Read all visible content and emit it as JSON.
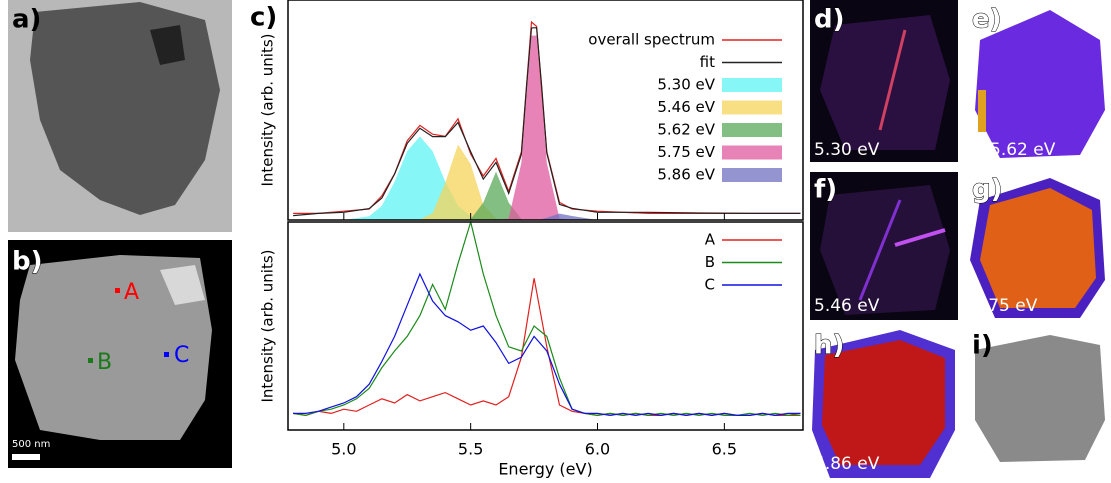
{
  "panels": {
    "a": "a)",
    "b": "b)",
    "c": "c)",
    "d": "d)",
    "e": "e)",
    "f": "f)",
    "g": "g)",
    "h": "h)",
    "i": "i)",
    "points": [
      "A",
      "B",
      "C"
    ],
    "scale": "500 nm",
    "energies": [
      "5.30 eV",
      "5.46 eV",
      "5.62 eV",
      "5.75 eV",
      "5.86 eV"
    ]
  },
  "chart_data": [
    {
      "type": "line",
      "ylabel": "Intensity (arb. units)",
      "x": [
        4.8,
        4.9,
        5.0,
        5.1,
        5.15,
        5.2,
        5.25,
        5.3,
        5.35,
        5.4,
        5.45,
        5.5,
        5.55,
        5.6,
        5.65,
        5.7,
        5.72,
        5.74,
        5.76,
        5.78,
        5.8,
        5.85,
        5.9,
        6.0,
        6.2,
        6.4,
        6.6,
        6.8
      ],
      "xlim": [
        4.78,
        6.81
      ],
      "ylim": [
        0,
        100
      ],
      "series": [
        {
          "name": "5.30 eV",
          "color": "#5ff3f3",
          "fill": true,
          "values": [
            0,
            0,
            0,
            1.7,
            6.5,
            17.4,
            31.3,
            38,
            31.3,
            17.4,
            6.5,
            1.7,
            0.3,
            0,
            0,
            0,
            0,
            0,
            0,
            0,
            0,
            0,
            0,
            0,
            0,
            0,
            0,
            0
          ]
        },
        {
          "name": "5.46 eV",
          "color": "#f5d45a",
          "fill": true,
          "values": [
            0,
            0,
            0,
            0,
            0,
            0,
            0,
            0.2,
            3.1,
            17,
            34.3,
            25.4,
            6.9,
            0.7,
            0,
            0,
            0,
            0,
            0,
            0,
            0,
            0,
            0,
            0,
            0,
            0,
            0,
            0
          ]
        },
        {
          "name": "5.62 eV",
          "color": "#5aa85a",
          "fill": true,
          "values": [
            0,
            0,
            0,
            0,
            0,
            0,
            0,
            0,
            0,
            0,
            0,
            0.4,
            7.9,
            22,
            7.9,
            0.4,
            0,
            0,
            0,
            0,
            0,
            0,
            0,
            0,
            0,
            0,
            0,
            0
          ]
        },
        {
          "name": "5.75 eV",
          "color": "#df5a9e",
          "fill": true,
          "values": [
            0,
            0,
            0,
            0,
            0,
            0,
            0,
            0,
            0,
            0,
            0,
            0,
            0,
            0,
            0.7,
            26,
            56.7,
            83.8,
            83.8,
            56.7,
            26,
            0.7,
            0,
            0,
            0,
            0,
            0,
            0
          ]
        },
        {
          "name": "5.86 eV",
          "color": "#7070c0",
          "fill": true,
          "values": [
            0,
            0,
            0,
            0,
            0,
            0,
            0,
            0,
            0,
            0,
            0,
            0,
            0,
            0,
            0,
            0,
            0,
            0,
            0.1,
            0.4,
            1.0,
            2.9,
            1.8,
            0,
            0,
            0,
            0,
            0
          ]
        },
        {
          "name": "overall spectrum",
          "color": "#e02020",
          "values": [
            3,
            3,
            4,
            5,
            11,
            21,
            36,
            43,
            39,
            38,
            46,
            30,
            20,
            28,
            13,
            31,
            61,
            90,
            88,
            59,
            31,
            8,
            5,
            4,
            3,
            3,
            3,
            3
          ]
        },
        {
          "name": "fit",
          "color": "#222222",
          "values": [
            2,
            3,
            3.5,
            5.2,
            10,
            20.9,
            34.8,
            41.7,
            37.9,
            37.9,
            44.3,
            31,
            18.6,
            26.2,
            12.1,
            29.9,
            60.2,
            87.3,
            87.4,
            60.6,
            30.5,
            7.1,
            5.3,
            3.5,
            3.5,
            3.2,
            3,
            3
          ]
        }
      ],
      "legend_order": [
        5,
        6,
        0,
        1,
        2,
        3,
        4
      ]
    },
    {
      "type": "line",
      "ylabel": "Intensity (arb. units)",
      "xlabel": "Energy (eV)",
      "x": [
        4.8,
        4.85,
        4.9,
        4.95,
        5.0,
        5.05,
        5.1,
        5.15,
        5.2,
        5.25,
        5.3,
        5.35,
        5.4,
        5.45,
        5.5,
        5.55,
        5.6,
        5.65,
        5.7,
        5.75,
        5.8,
        5.85,
        5.9,
        5.95,
        6.0,
        6.05,
        6.1,
        6.15,
        6.2,
        6.25,
        6.3,
        6.35,
        6.4,
        6.45,
        6.5,
        6.55,
        6.6,
        6.65,
        6.7,
        6.75,
        6.8
      ],
      "xlim": [
        4.78,
        6.81
      ],
      "ylim": [
        0,
        100
      ],
      "xticks": [
        {
          "value": 5,
          "label": "5.0"
        },
        5.5,
        {
          "value": 6,
          "label": "6.0"
        },
        6.5
      ],
      "series": [
        {
          "name": "A",
          "color": "#e02020",
          "values": [
            8,
            7,
            9,
            8,
            10,
            9,
            12,
            15,
            13,
            17,
            14,
            16,
            18,
            15,
            12,
            14,
            12,
            16,
            35,
            73,
            40,
            12,
            9,
            8,
            7,
            8,
            7,
            8,
            7,
            7,
            8,
            7,
            8,
            7,
            8,
            7,
            7,
            8,
            7,
            7,
            8
          ]
        },
        {
          "name": "B",
          "color": "#1a8a1a",
          "values": [
            8,
            7,
            9,
            10,
            12,
            15,
            20,
            30,
            38,
            45,
            55,
            70,
            58,
            80,
            100,
            75,
            55,
            40,
            38,
            50,
            45,
            25,
            10,
            8,
            7,
            8,
            7,
            8,
            7,
            8,
            7,
            8,
            7,
            8,
            7,
            7,
            8,
            7,
            8,
            7,
            7
          ]
        },
        {
          "name": "C",
          "color": "#1010e0",
          "values": [
            8,
            8,
            9,
            11,
            13,
            16,
            22,
            33,
            45,
            60,
            75,
            62,
            55,
            52,
            48,
            50,
            42,
            32,
            35,
            45,
            38,
            22,
            10,
            8,
            8,
            7,
            8,
            7,
            8,
            7,
            8,
            7,
            8,
            7,
            8,
            7,
            7,
            8,
            7,
            8,
            8
          ]
        }
      ],
      "legend_order": [
        0,
        1,
        2
      ]
    }
  ]
}
